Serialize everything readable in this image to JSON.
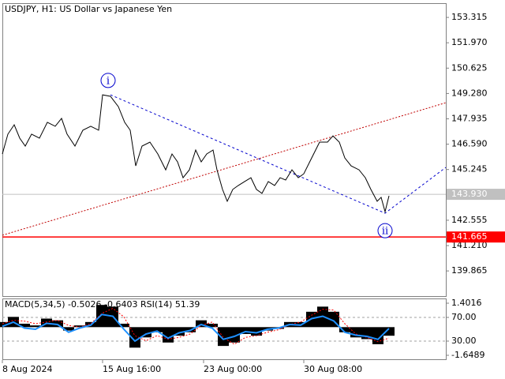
{
  "chart_data": [
    {
      "type": "line",
      "title": "USDJPY, H1:  US Dollar vs Japanese Yen",
      "color": "#000000",
      "x": [
        0,
        7,
        15,
        22,
        29,
        37,
        47,
        57,
        67,
        75,
        82,
        92,
        102,
        112,
        122,
        127,
        137,
        147,
        155,
        162,
        169,
        177,
        187,
        197,
        207,
        215,
        222,
        229,
        237,
        245,
        252,
        259,
        267,
        272,
        279,
        285,
        292,
        299,
        307,
        315,
        322,
        329,
        337,
        345,
        352,
        359,
        367,
        375,
        382,
        392,
        402,
        412,
        419,
        427,
        434,
        442,
        452,
        460,
        467,
        475,
        480,
        485,
        490
      ],
      "values": [
        146.07,
        147.12,
        147.62,
        146.91,
        146.49,
        147.12,
        146.91,
        147.75,
        147.54,
        147.96,
        147.12,
        146.49,
        147.33,
        147.54,
        147.33,
        149.21,
        149.13,
        148.58,
        147.75,
        147.33,
        145.44,
        146.49,
        146.7,
        146.07,
        145.23,
        146.07,
        145.65,
        144.81,
        145.23,
        146.28,
        145.65,
        146.07,
        146.28,
        145.23,
        144.19,
        143.56,
        144.19,
        144.4,
        144.61,
        144.81,
        144.19,
        143.98,
        144.61,
        144.4,
        144.81,
        144.69,
        145.23,
        144.81,
        145.02,
        145.86,
        146.7,
        146.7,
        147.03,
        146.7,
        145.86,
        145.44,
        145.23,
        144.81,
        144.19,
        143.56,
        143.77,
        143.01,
        143.85
      ],
      "xlim": [
        0,
        562
      ],
      "xticks": [
        {
          "value": 0,
          "label": "8 Aug 2024"
        },
        {
          "value": 127,
          "label": "15 Aug 16:00"
        },
        {
          "value": 255,
          "label": "23 Aug 00:00"
        },
        {
          "value": 382,
          "label": "30 Aug 08:00"
        }
      ],
      "ylim": [
        138.53,
        154.03
      ],
      "yticks": [
        153.315,
        {
          "value": 151.97,
          "label": "151.970"
        },
        150.625,
        {
          "value": 149.28,
          "label": "149.280"
        },
        147.935,
        {
          "value": 146.59,
          "label": "146.590"
        },
        145.245,
        142.555,
        {
          "value": 141.21,
          "label": "141.210"
        },
        139.865
      ],
      "hlines": [
        {
          "value": 143.93,
          "label": "143.930",
          "color": "#c0c0c0"
        },
        {
          "value": 141.665,
          "color": "#ff0000"
        }
      ],
      "trendlines": [
        {
          "color": "#0000cd",
          "points": [
            [
              137,
              149.21
            ],
            [
              485,
              142.93
            ],
            [
              562,
              145.36
            ]
          ]
        },
        {
          "color": "#c00000",
          "points": [
            [
              0,
              141.76
            ],
            [
              562,
              148.79
            ]
          ]
        }
      ],
      "annotations": [
        {
          "text": "i",
          "x": 134,
          "y": 149.97
        },
        {
          "text": "ii",
          "x": 485,
          "y": 142.0
        }
      ]
    },
    {
      "type": "macd",
      "title": "MACD(5,34,5) -0.5026 -0.6403 RSI(14) 51.39",
      "x": [
        0,
        14,
        28,
        42,
        56,
        70,
        84,
        98,
        112,
        126,
        140,
        154,
        168,
        182,
        196,
        210,
        224,
        238,
        252,
        266,
        280,
        294,
        308,
        322,
        336,
        350,
        364,
        378,
        392,
        406,
        420,
        434,
        448,
        462,
        476,
        490
      ],
      "histogram": {
        "color": "#000000",
        "values": [
          0.3,
          0.6,
          0.2,
          0.1,
          0.5,
          0.4,
          -0.2,
          0.1,
          0.3,
          1.3,
          1.2,
          0.2,
          -1.2,
          -0.6,
          -0.3,
          -0.9,
          -0.5,
          -0.3,
          0.4,
          0.2,
          -1.1,
          -0.9,
          -0.4,
          -0.5,
          -0.2,
          -0.1,
          0.3,
          0.3,
          0.9,
          1.2,
          0.9,
          -0.3,
          -0.6,
          -0.7,
          -1.0,
          -0.5026
        ]
      },
      "signal": {
        "color": "#ff0000",
        "values": [
          0.2,
          0.4,
          0.35,
          0.2,
          0.3,
          0.4,
          0.1,
          0.0,
          0.2,
          0.8,
          1.1,
          0.6,
          -0.5,
          -0.8,
          -0.5,
          -0.7,
          -0.6,
          -0.4,
          0.1,
          0.3,
          -0.6,
          -1.0,
          -0.6,
          -0.5,
          -0.3,
          -0.15,
          0.15,
          0.3,
          0.7,
          1.05,
          1.0,
          0.2,
          -0.4,
          -0.6,
          -0.85,
          -0.6403
        ]
      },
      "rsi": {
        "color": "#1e90ff",
        "axis": "y2",
        "values": [
          55,
          62,
          52,
          50,
          60,
          58,
          45,
          52,
          57,
          75,
          72,
          50,
          30,
          42,
          47,
          35,
          44,
          48,
          58,
          52,
          33,
          38,
          46,
          44,
          50,
          52,
          58,
          57,
          68,
          72,
          64,
          45,
          40,
          38,
          33,
          51.39
        ]
      },
      "ylim": [
        -1.857,
        1.609
      ],
      "yticks": [
        1.4016,
        -1.6489
      ],
      "y2lim": [
        0,
        100
      ],
      "y2ticks": [
        {
          "value": 70,
          "label": "70.00"
        },
        {
          "value": 30,
          "label": "30.00"
        }
      ]
    }
  ]
}
